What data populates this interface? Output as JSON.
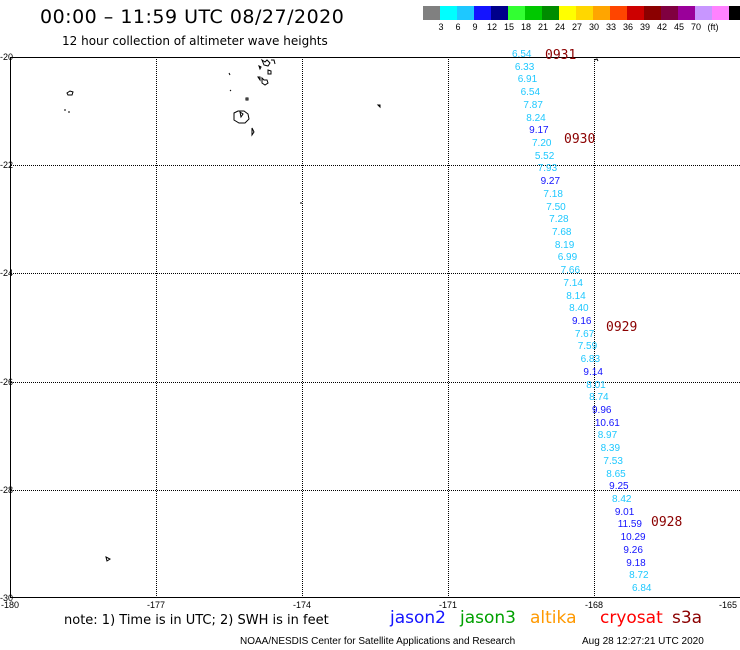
{
  "header": {
    "title": "00:00 – 11:59 UTC 08/27/2020",
    "subtitle": "12 hour collection of altimeter wave heights"
  },
  "colorbar": {
    "colors": [
      "#808080",
      "#00ffff",
      "#1ec8ff",
      "#1414ff",
      "#00008b",
      "#32ff32",
      "#00c800",
      "#008c00",
      "#ffff00",
      "#ffd700",
      "#ffa500",
      "#ff4500",
      "#cd0000",
      "#8b0000",
      "#800040",
      "#9a009a",
      "#c896ff",
      "#ff82ff",
      "#000000"
    ],
    "labels": [
      "3",
      "6",
      "9",
      "12",
      "15",
      "18",
      "21",
      "24",
      "27",
      "30",
      "33",
      "36",
      "39",
      "42",
      "45",
      "70",
      "(ft)"
    ]
  },
  "axes": {
    "x_ticks": [
      "-180",
      "-177",
      "-174",
      "-171",
      "-168",
      "-165"
    ],
    "y_ticks": [
      "-20",
      "-22",
      "-24",
      "-26",
      "-28",
      "-30"
    ],
    "lon_range": [
      -180,
      -165
    ],
    "lat_range": [
      -30,
      -20
    ],
    "grid": true
  },
  "track": {
    "color_light": "#1ec8ff",
    "color_dark": "#1414ff",
    "points": [
      {
        "value": "6.54",
        "shade": "light"
      },
      {
        "value": "6.33",
        "shade": "light"
      },
      {
        "value": "6.91",
        "shade": "light"
      },
      {
        "value": "6.54",
        "shade": "light"
      },
      {
        "value": "7.87",
        "shade": "light"
      },
      {
        "value": "8.24",
        "shade": "light"
      },
      {
        "value": "9.17",
        "shade": "dark"
      },
      {
        "value": "7.20",
        "shade": "light"
      },
      {
        "value": "5.52",
        "shade": "light"
      },
      {
        "value": "7.93",
        "shade": "light"
      },
      {
        "value": "9.27",
        "shade": "dark"
      },
      {
        "value": "7.18",
        "shade": "light"
      },
      {
        "value": "7.50",
        "shade": "light"
      },
      {
        "value": "7.28",
        "shade": "light"
      },
      {
        "value": "7.68",
        "shade": "light"
      },
      {
        "value": "8.19",
        "shade": "light"
      },
      {
        "value": "6.99",
        "shade": "light"
      },
      {
        "value": "7.66",
        "shade": "light"
      },
      {
        "value": "7.14",
        "shade": "light"
      },
      {
        "value": "8.14",
        "shade": "light"
      },
      {
        "value": "8.40",
        "shade": "light"
      },
      {
        "value": "9.16",
        "shade": "dark"
      },
      {
        "value": "7.67",
        "shade": "light"
      },
      {
        "value": "7.59",
        "shade": "light"
      },
      {
        "value": "6.83",
        "shade": "light"
      },
      {
        "value": "9.14",
        "shade": "dark"
      },
      {
        "value": "8.01",
        "shade": "light"
      },
      {
        "value": "8.74",
        "shade": "light"
      },
      {
        "value": "9.96",
        "shade": "dark"
      },
      {
        "value": "10.61",
        "shade": "dark"
      },
      {
        "value": "8.97",
        "shade": "light"
      },
      {
        "value": "8.39",
        "shade": "light"
      },
      {
        "value": "7.53",
        "shade": "light"
      },
      {
        "value": "8.65",
        "shade": "light"
      },
      {
        "value": "9.25",
        "shade": "dark"
      },
      {
        "value": "8.42",
        "shade": "light"
      },
      {
        "value": "9.01",
        "shade": "dark"
      },
      {
        "value": "11.59",
        "shade": "dark"
      },
      {
        "value": "10.29",
        "shade": "dark"
      },
      {
        "value": "9.26",
        "shade": "dark"
      },
      {
        "value": "9.18",
        "shade": "dark"
      },
      {
        "value": "8.72",
        "shade": "light"
      },
      {
        "value": "6.84",
        "shade": "light"
      }
    ],
    "date_labels": [
      "0931",
      "0930",
      "0929",
      "0928"
    ]
  },
  "footer": {
    "note": "note:  1) Time is in UTC;  2) SWH is in feet",
    "satellites": [
      {
        "name": "jason2",
        "color": "#1414ff"
      },
      {
        "name": "jason3",
        "color": "#00a000"
      },
      {
        "name": "altika",
        "color": "#ff9900"
      },
      {
        "name": "cryosat",
        "color": "#ff0000"
      },
      {
        "name": "s3a",
        "color": "#8b0000"
      }
    ],
    "credit": "NOAA/NESDIS Center for Satellite Applications and Research",
    "timestamp": "Aug 28 12:27:21 UTC 2020"
  }
}
